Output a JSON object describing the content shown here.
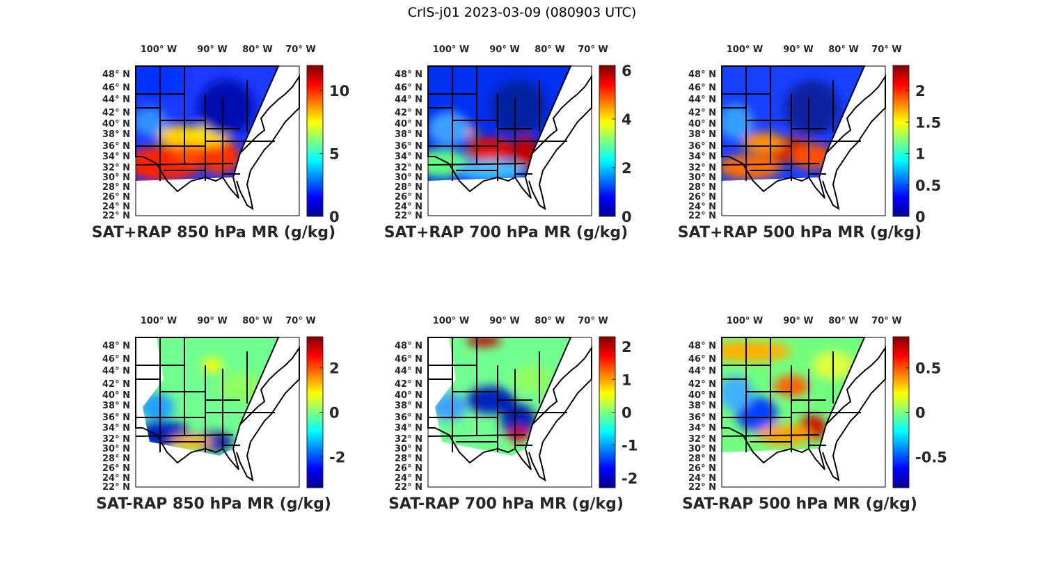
{
  "title": "CrIS-j01 2023-03-09 (080903 UTC)",
  "colormap": "jet",
  "chart_data": [
    {
      "type": "map",
      "title": "SAT+RAP 850 hPa MR (g/kg)",
      "lon_ticks": [
        "100° W",
        "90° W",
        "80° W",
        "70° W"
      ],
      "lat_ticks": [
        "48° N",
        "46° N",
        "44° N",
        "42° N",
        "40° N",
        "38° N",
        "36° N",
        "34° N",
        "32° N",
        "30° N",
        "28° N",
        "26° N",
        "24° N",
        "22° N"
      ],
      "colorbar": {
        "range": [
          0,
          12
        ],
        "ticks": [
          0,
          5,
          10
        ],
        "tick_labels": [
          "0",
          "5",
          "10"
        ]
      }
    },
    {
      "type": "map",
      "title": "SAT+RAP 700 hPa MR (g/kg)",
      "lon_ticks": [
        "100° W",
        "90° W",
        "80° W",
        "70° W"
      ],
      "lat_ticks": [
        "48° N",
        "46° N",
        "44° N",
        "42° N",
        "40° N",
        "38° N",
        "36° N",
        "34° N",
        "32° N",
        "30° N",
        "28° N",
        "26° N",
        "24° N",
        "22° N"
      ],
      "colorbar": {
        "range": [
          0,
          6.2
        ],
        "ticks": [
          0,
          2,
          4,
          6
        ],
        "tick_labels": [
          "0",
          "2",
          "4",
          "6"
        ]
      }
    },
    {
      "type": "map",
      "title": "SAT+RAP 500 hPa MR (g/kg)",
      "lon_ticks": [
        "100° W",
        "90° W",
        "80° W",
        "70° W"
      ],
      "lat_ticks": [
        "48° N",
        "46° N",
        "44° N",
        "42° N",
        "40° N",
        "38° N",
        "36° N",
        "34° N",
        "32° N",
        "30° N",
        "28° N",
        "26° N",
        "24° N",
        "22° N"
      ],
      "colorbar": {
        "range": [
          0,
          2.4
        ],
        "ticks": [
          0,
          0.5,
          1,
          1.5,
          2
        ],
        "tick_labels": [
          "0",
          "0.5",
          "1",
          "1.5",
          "2"
        ]
      }
    },
    {
      "type": "map",
      "title": "SAT-RAP 850 hPa MR (g/kg)",
      "lon_ticks": [
        "100° W",
        "90° W",
        "80° W",
        "70° W"
      ],
      "lat_ticks": [
        "48° N",
        "46° N",
        "44° N",
        "42° N",
        "40° N",
        "38° N",
        "36° N",
        "34° N",
        "32° N",
        "30° N",
        "28° N",
        "26° N",
        "24° N",
        "22° N"
      ],
      "colorbar": {
        "range": [
          -3.4,
          3.4
        ],
        "ticks": [
          -2,
          0,
          2
        ],
        "tick_labels": [
          "-2",
          "0",
          "2"
        ]
      }
    },
    {
      "type": "map",
      "title": "SAT-RAP 700 hPa MR (g/kg)",
      "lon_ticks": [
        "100° W",
        "90° W",
        "80° W",
        "70° W"
      ],
      "lat_ticks": [
        "48° N",
        "46° N",
        "44° N",
        "42° N",
        "40° N",
        "38° N",
        "36° N",
        "34° N",
        "32° N",
        "30° N",
        "28° N",
        "26° N",
        "24° N",
        "22° N"
      ],
      "colorbar": {
        "range": [
          -2.3,
          2.3
        ],
        "ticks": [
          -2,
          -1,
          0,
          1,
          2
        ],
        "tick_labels": [
          "-2",
          "-1",
          "0",
          "1",
          "2"
        ]
      }
    },
    {
      "type": "map",
      "title": "SAT-RAP 500 hPa MR (g/kg)",
      "lon_ticks": [
        "100° W",
        "90° W",
        "80° W",
        "70° W"
      ],
      "lat_ticks": [
        "48° N",
        "46° N",
        "44° N",
        "42° N",
        "40° N",
        "38° N",
        "36° N",
        "34° N",
        "32° N",
        "30° N",
        "28° N",
        "26° N",
        "24° N",
        "22° N"
      ],
      "colorbar": {
        "range": [
          -0.85,
          0.85
        ],
        "ticks": [
          -0.5,
          0,
          0.5
        ],
        "tick_labels": [
          "-0.5",
          "0",
          "0.5"
        ]
      }
    }
  ]
}
